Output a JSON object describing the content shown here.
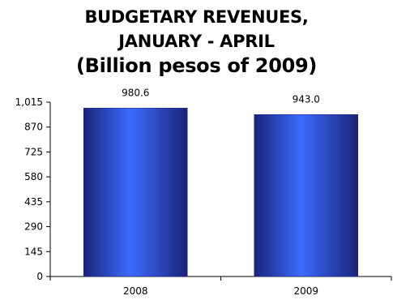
{
  "title_lines": [
    "BUDGETARY REVENUES,",
    "JANUARY - APRIL",
    "(Billion pesos of 2009)"
  ],
  "chart_data": {
    "type": "bar",
    "title": "BUDGETARY REVENUES, JANUARY - APRIL (Billion pesos of 2009)",
    "categories": [
      "2008",
      "2009"
    ],
    "values": [
      980.6,
      943.0
    ],
    "value_labels": [
      "980.6",
      "943.0"
    ],
    "y_ticks": [
      0,
      145,
      290,
      435,
      580,
      725,
      870,
      1015
    ],
    "y_tick_labels": [
      "0",
      "145",
      "290",
      "435",
      "580",
      "725",
      "870",
      "1,015"
    ],
    "ylim": [
      0,
      1015
    ],
    "grid": false,
    "legend": "none",
    "colors": {
      "bar_dark": "#1a237a",
      "bar_light": "#3d6bff",
      "axis": "#000000"
    }
  }
}
